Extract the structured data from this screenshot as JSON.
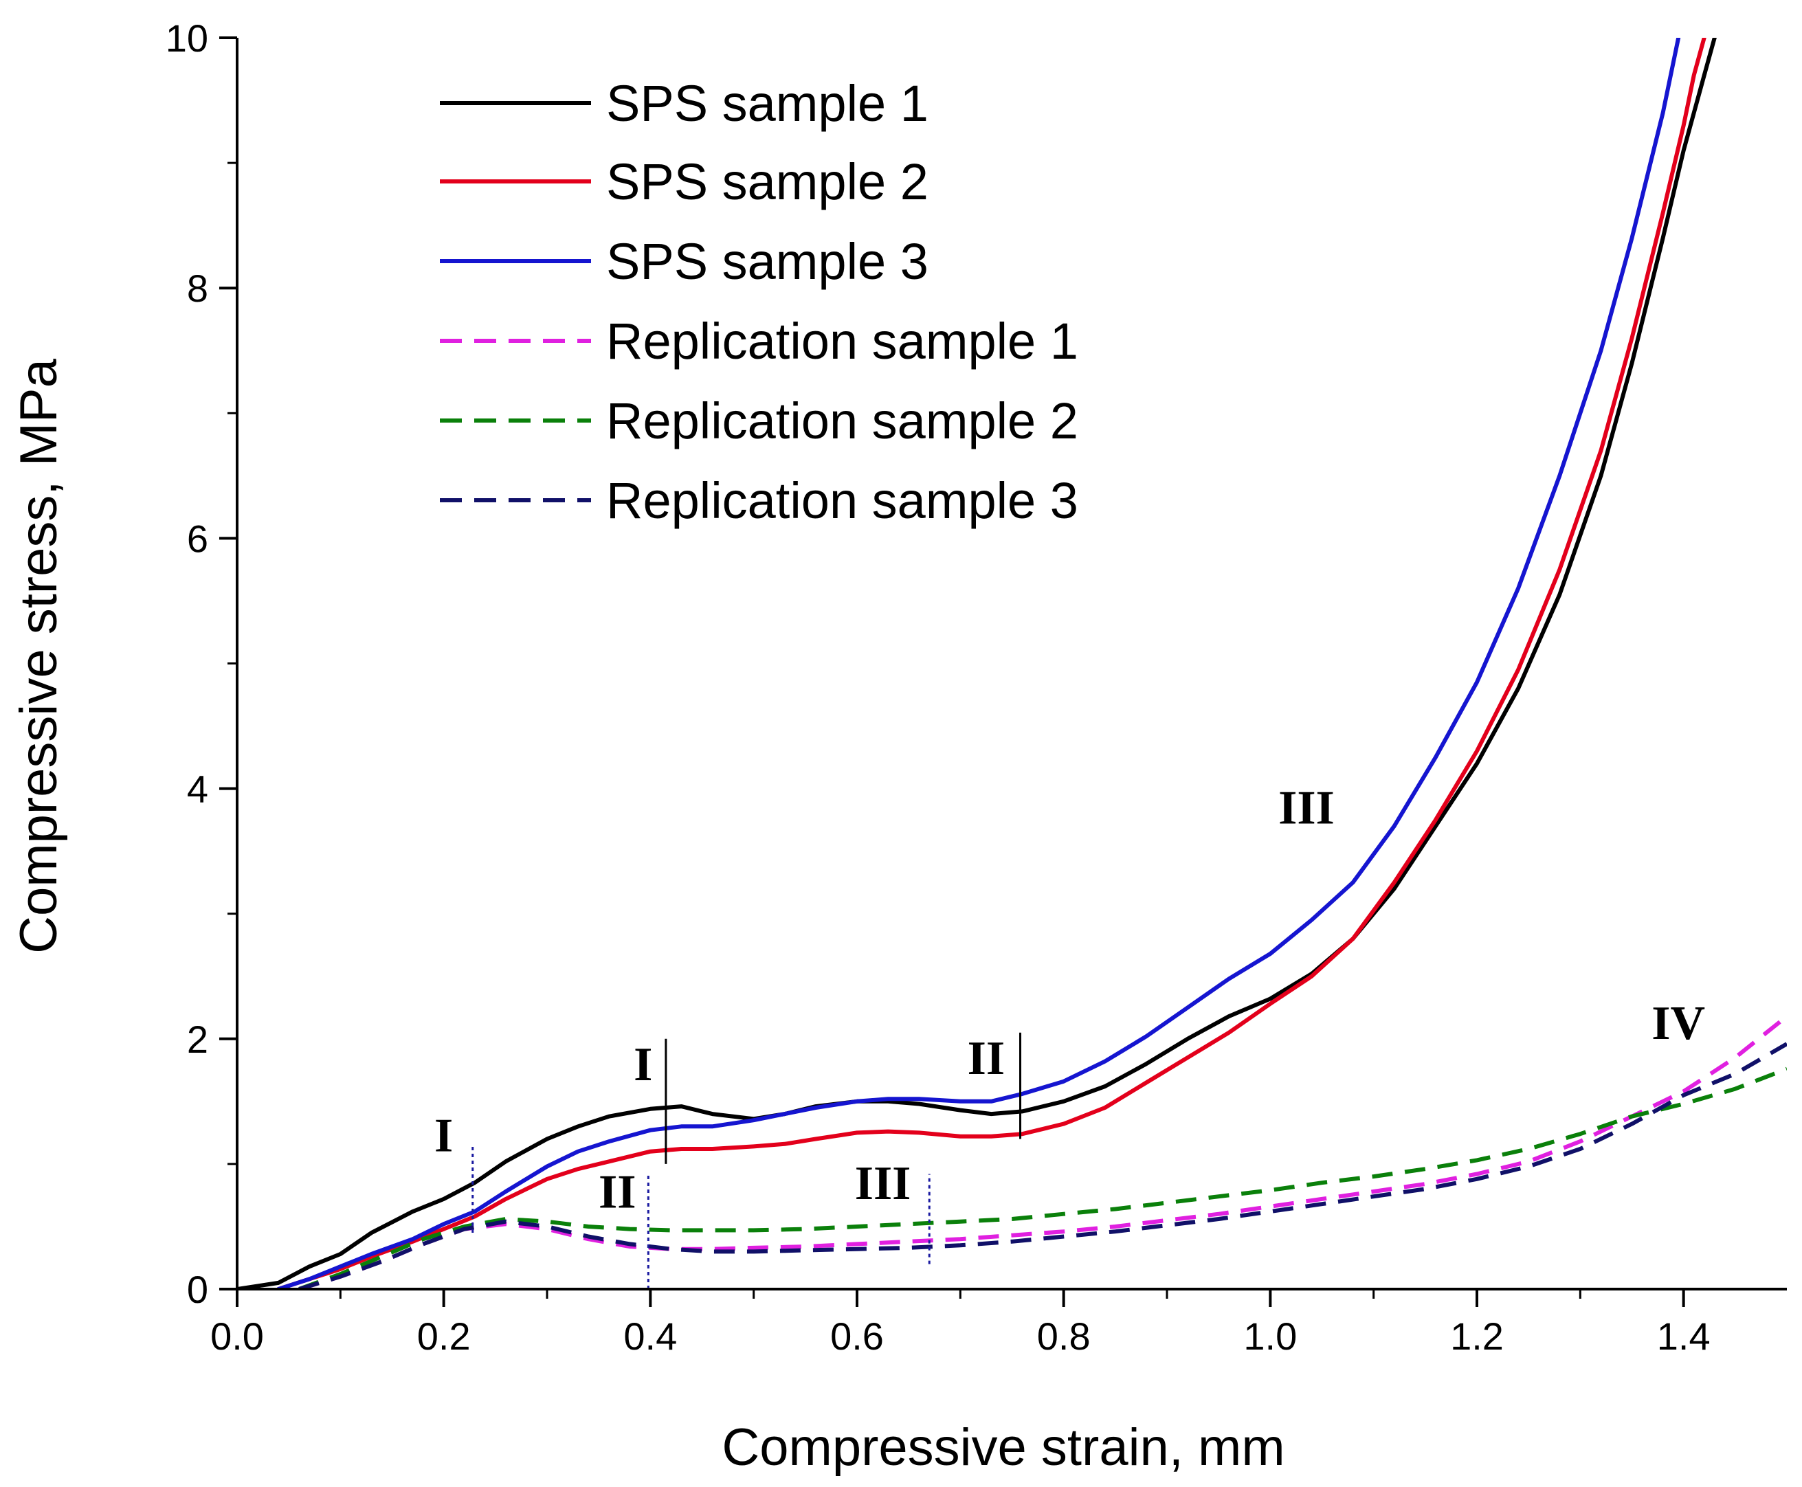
{
  "chart_data": {
    "type": "line",
    "title": "",
    "xlabel": "Compressive strain, mm",
    "ylabel": "Compressive stress, MPa",
    "xlim": [
      0.0,
      1.5
    ],
    "ylim": [
      0,
      10
    ],
    "xticks": [
      "0.0",
      "0.2",
      "0.4",
      "0.6",
      "0.8",
      "1.0",
      "1.2",
      "1.4"
    ],
    "yticks": [
      "0",
      "2",
      "4",
      "6",
      "8",
      "10"
    ],
    "grid": false,
    "legend_position": "top-left",
    "series": [
      {
        "name": "SPS sample 1",
        "color": "#000000",
        "style": "solid",
        "x": [
          0.0,
          0.04,
          0.07,
          0.1,
          0.13,
          0.17,
          0.2,
          0.23,
          0.26,
          0.3,
          0.33,
          0.36,
          0.4,
          0.43,
          0.46,
          0.5,
          0.53,
          0.56,
          0.6,
          0.63,
          0.66,
          0.7,
          0.73,
          0.76,
          0.8,
          0.84,
          0.88,
          0.92,
          0.96,
          1.0,
          1.04,
          1.08,
          1.12,
          1.16,
          1.2,
          1.24,
          1.28,
          1.32,
          1.35,
          1.38,
          1.4,
          1.42,
          1.43
        ],
        "y": [
          0.0,
          0.05,
          0.18,
          0.28,
          0.45,
          0.62,
          0.72,
          0.85,
          1.02,
          1.2,
          1.3,
          1.38,
          1.44,
          1.46,
          1.4,
          1.36,
          1.4,
          1.46,
          1.5,
          1.5,
          1.48,
          1.43,
          1.4,
          1.42,
          1.5,
          1.62,
          1.8,
          2.0,
          2.18,
          2.32,
          2.52,
          2.8,
          3.2,
          3.7,
          4.2,
          4.8,
          5.55,
          6.5,
          7.4,
          8.4,
          9.1,
          9.7,
          10.0
        ]
      },
      {
        "name": "SPS sample 2",
        "color": "#e3001b",
        "style": "solid",
        "x": [
          0.04,
          0.07,
          0.1,
          0.13,
          0.17,
          0.2,
          0.23,
          0.26,
          0.3,
          0.33,
          0.36,
          0.4,
          0.43,
          0.46,
          0.5,
          0.53,
          0.56,
          0.6,
          0.63,
          0.66,
          0.7,
          0.73,
          0.76,
          0.8,
          0.84,
          0.88,
          0.92,
          0.96,
          1.0,
          1.04,
          1.08,
          1.12,
          1.16,
          1.2,
          1.24,
          1.28,
          1.32,
          1.35,
          1.38,
          1.4,
          1.41,
          1.42
        ],
        "y": [
          0.0,
          0.08,
          0.16,
          0.26,
          0.38,
          0.48,
          0.58,
          0.72,
          0.88,
          0.96,
          1.02,
          1.1,
          1.12,
          1.12,
          1.14,
          1.16,
          1.2,
          1.25,
          1.26,
          1.25,
          1.22,
          1.22,
          1.24,
          1.32,
          1.45,
          1.65,
          1.85,
          2.05,
          2.28,
          2.5,
          2.8,
          3.25,
          3.75,
          4.3,
          4.95,
          5.75,
          6.7,
          7.6,
          8.6,
          9.3,
          9.7,
          10.0
        ]
      },
      {
        "name": "SPS sample 3",
        "color": "#1515d0",
        "style": "solid",
        "x": [
          0.04,
          0.07,
          0.1,
          0.13,
          0.17,
          0.2,
          0.23,
          0.26,
          0.3,
          0.33,
          0.36,
          0.4,
          0.43,
          0.46,
          0.5,
          0.53,
          0.56,
          0.6,
          0.63,
          0.66,
          0.7,
          0.73,
          0.76,
          0.8,
          0.84,
          0.88,
          0.92,
          0.96,
          1.0,
          1.04,
          1.08,
          1.12,
          1.16,
          1.2,
          1.24,
          1.28,
          1.32,
          1.35,
          1.38,
          1.395
        ],
        "y": [
          0.0,
          0.08,
          0.18,
          0.28,
          0.4,
          0.52,
          0.62,
          0.78,
          0.98,
          1.1,
          1.18,
          1.27,
          1.3,
          1.3,
          1.35,
          1.4,
          1.45,
          1.5,
          1.52,
          1.52,
          1.5,
          1.5,
          1.56,
          1.66,
          1.82,
          2.02,
          2.25,
          2.48,
          2.68,
          2.95,
          3.25,
          3.7,
          4.25,
          4.85,
          5.6,
          6.5,
          7.5,
          8.4,
          9.4,
          10.0
        ]
      },
      {
        "name": "Replication sample 1",
        "color": "#e020e0",
        "style": "dashed",
        "x": [
          0.06,
          0.1,
          0.14,
          0.18,
          0.22,
          0.26,
          0.3,
          0.34,
          0.38,
          0.42,
          0.46,
          0.5,
          0.55,
          0.6,
          0.65,
          0.7,
          0.75,
          0.8,
          0.85,
          0.9,
          0.95,
          1.0,
          1.05,
          1.1,
          1.15,
          1.2,
          1.25,
          1.3,
          1.35,
          1.4,
          1.45,
          1.5
        ],
        "y": [
          0.0,
          0.1,
          0.22,
          0.36,
          0.48,
          0.52,
          0.48,
          0.4,
          0.34,
          0.32,
          0.32,
          0.33,
          0.34,
          0.36,
          0.38,
          0.4,
          0.43,
          0.46,
          0.5,
          0.55,
          0.6,
          0.66,
          0.72,
          0.78,
          0.84,
          0.92,
          1.02,
          1.18,
          1.38,
          1.58,
          1.85,
          2.18
        ]
      },
      {
        "name": "Replication sample 2",
        "color": "#0a800a",
        "style": "dashed",
        "x": [
          0.06,
          0.1,
          0.14,
          0.18,
          0.22,
          0.26,
          0.3,
          0.34,
          0.38,
          0.42,
          0.46,
          0.5,
          0.55,
          0.6,
          0.65,
          0.7,
          0.75,
          0.8,
          0.85,
          0.9,
          0.95,
          1.0,
          1.05,
          1.1,
          1.15,
          1.2,
          1.25,
          1.3,
          1.35,
          1.4,
          1.45,
          1.5
        ],
        "y": [
          0.0,
          0.12,
          0.26,
          0.4,
          0.5,
          0.56,
          0.54,
          0.5,
          0.48,
          0.47,
          0.47,
          0.47,
          0.48,
          0.5,
          0.52,
          0.54,
          0.56,
          0.6,
          0.64,
          0.69,
          0.74,
          0.79,
          0.85,
          0.9,
          0.96,
          1.03,
          1.12,
          1.24,
          1.38,
          1.48,
          1.6,
          1.76
        ]
      },
      {
        "name": "Replication sample 3",
        "color": "#101068",
        "style": "dashed",
        "x": [
          0.06,
          0.1,
          0.14,
          0.18,
          0.22,
          0.26,
          0.3,
          0.34,
          0.38,
          0.42,
          0.46,
          0.5,
          0.55,
          0.6,
          0.65,
          0.7,
          0.75,
          0.8,
          0.85,
          0.9,
          0.95,
          1.0,
          1.05,
          1.1,
          1.15,
          1.2,
          1.25,
          1.3,
          1.35,
          1.4,
          1.45,
          1.5
        ],
        "y": [
          0.0,
          0.1,
          0.22,
          0.36,
          0.48,
          0.54,
          0.5,
          0.42,
          0.36,
          0.32,
          0.3,
          0.3,
          0.31,
          0.32,
          0.33,
          0.35,
          0.38,
          0.42,
          0.46,
          0.51,
          0.56,
          0.62,
          0.68,
          0.74,
          0.8,
          0.88,
          0.98,
          1.12,
          1.32,
          1.55,
          1.72,
          1.96
        ]
      }
    ],
    "markers": [
      {
        "x": 0.415,
        "y0": 1.0,
        "y1": 2.0,
        "style": "solid"
      },
      {
        "x": 0.758,
        "y0": 1.2,
        "y1": 2.05,
        "style": "solid"
      },
      {
        "x": 0.228,
        "y0": 0.45,
        "y1": 1.15,
        "style": "dotted"
      },
      {
        "x": 0.398,
        "y0": 0.0,
        "y1": 0.92,
        "style": "dotted"
      },
      {
        "x": 0.67,
        "y0": 0.2,
        "y1": 0.92,
        "style": "dotted"
      }
    ],
    "annotations": [
      {
        "text": "I",
        "x": 0.393,
        "y": 1.67
      },
      {
        "text": "II",
        "x": 0.725,
        "y": 1.72
      },
      {
        "text": "III",
        "x": 1.035,
        "y": 3.72
      },
      {
        "text": "I",
        "x": 0.2,
        "y": 1.1
      },
      {
        "text": "II",
        "x": 0.368,
        "y": 0.65
      },
      {
        "text": "III",
        "x": 0.625,
        "y": 0.72
      },
      {
        "text": "IV",
        "x": 1.395,
        "y": 2.0
      }
    ]
  }
}
